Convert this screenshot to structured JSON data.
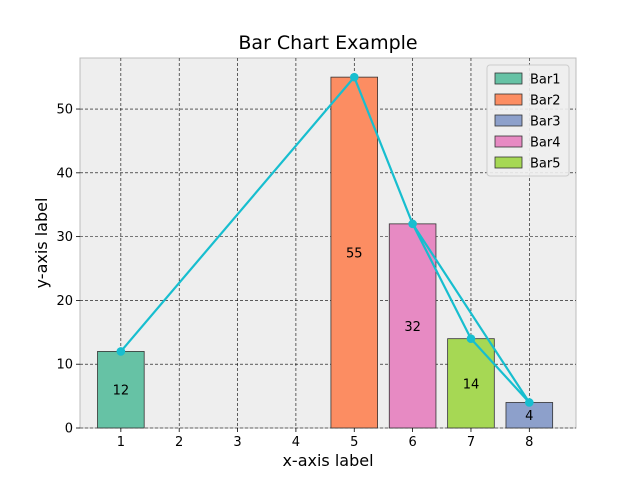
{
  "chart_data": {
    "type": "bar",
    "title": "Bar Chart Example",
    "xlabel": "x-axis label",
    "ylabel": "y-axis label",
    "xlim": [
      0.3,
      8.8
    ],
    "ylim": [
      0,
      58
    ],
    "x_ticks": [
      1,
      2,
      3,
      4,
      5,
      6,
      7,
      8
    ],
    "y_ticks": [
      0,
      10,
      20,
      30,
      40,
      50
    ],
    "grid": true,
    "legend_position": "top-right",
    "bars": [
      {
        "name": "Bar1",
        "x": 1,
        "value": 12,
        "label": "12",
        "color": "#66c2a5"
      },
      {
        "name": "Bar2",
        "x": 5,
        "value": 55,
        "label": "55",
        "color": "#fc8d62"
      },
      {
        "name": "Bar3",
        "x": 8,
        "value": 4,
        "label": "4",
        "color": "#8da0cb"
      },
      {
        "name": "Bar4",
        "x": 6,
        "value": 32,
        "label": "32",
        "color": "#e78ac3"
      },
      {
        "name": "Bar5",
        "x": 7,
        "value": 14,
        "label": "14",
        "color": "#a6d854"
      }
    ],
    "line": {
      "color": "#17becf",
      "points": [
        [
          1,
          12
        ],
        [
          5,
          55
        ],
        [
          6,
          32
        ],
        [
          7,
          14
        ],
        [
          8,
          4
        ],
        [
          6,
          32
        ]
      ]
    }
  }
}
